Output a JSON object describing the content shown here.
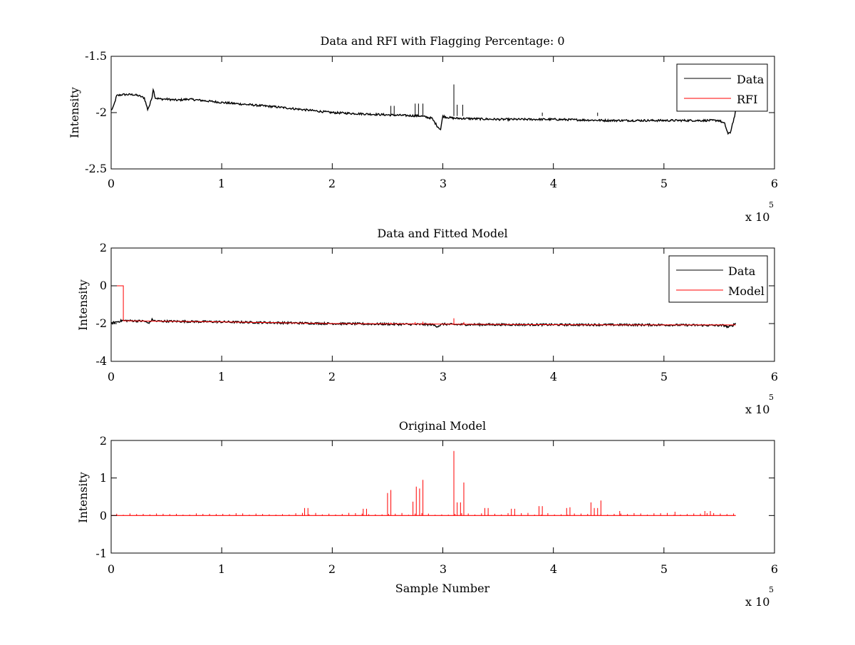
{
  "chart_data": [
    {
      "type": "line",
      "title": "Data and RFI with Flagging Percentage: 0",
      "xlabel": "",
      "ylabel": "Intensity",
      "xlim": [
        0,
        600000
      ],
      "ylim": [
        -2.5,
        -1.5
      ],
      "x_ticks": [
        "0",
        "1",
        "2",
        "3",
        "4",
        "5",
        "6"
      ],
      "y_ticks": [
        "-2.5",
        "-2",
        "-1.5"
      ],
      "x_multiplier": "x 10",
      "x_exponent": "5",
      "legend": {
        "location": "top-right",
        "entries": [
          "Data",
          "RFI"
        ]
      },
      "series": [
        {
          "name": "Data",
          "color": "#000000",
          "x": [
            0,
            2000,
            5000,
            10000,
            15000,
            20000,
            25000,
            30000,
            33000,
            35000,
            37000,
            38000,
            40000,
            45000,
            50000,
            60000,
            70000,
            80000,
            100000,
            150000,
            200000,
            250000,
            280000,
            290000,
            295000,
            298000,
            300000,
            303000,
            310000,
            350000,
            400000,
            450000,
            500000,
            550000,
            555000,
            558000,
            560000,
            562000,
            564000,
            565000
          ],
          "values": [
            -1.98,
            -1.95,
            -1.85,
            -1.84,
            -1.84,
            -1.84,
            -1.85,
            -1.87,
            -1.97,
            -1.93,
            -1.86,
            -1.79,
            -1.87,
            -1.88,
            -1.88,
            -1.89,
            -1.88,
            -1.89,
            -1.91,
            -1.95,
            -2.0,
            -2.02,
            -2.03,
            -2.05,
            -2.12,
            -2.15,
            -2.03,
            -2.04,
            -2.05,
            -2.06,
            -2.06,
            -2.07,
            -2.07,
            -2.07,
            -2.1,
            -2.19,
            -2.18,
            -2.1,
            -2.03,
            -1.98
          ]
        },
        {
          "name": "RFI",
          "color": "#ff0000",
          "x": [],
          "values": []
        }
      ]
    },
    {
      "type": "line",
      "title": "Data and Fitted Model",
      "xlabel": "",
      "ylabel": "Intensity",
      "xlim": [
        0,
        600000
      ],
      "ylim": [
        -4,
        2
      ],
      "x_ticks": [
        "0",
        "1",
        "2",
        "3",
        "4",
        "5",
        "6"
      ],
      "y_ticks": [
        "-4",
        "-2",
        "0",
        "2"
      ],
      "x_multiplier": "x 10",
      "x_exponent": "5",
      "legend": {
        "location": "top-right",
        "entries": [
          "Data",
          "Model"
        ]
      },
      "series": [
        {
          "name": "Data",
          "color": "#000000",
          "x": [
            0,
            10000,
            30000,
            33000,
            35000,
            37000,
            40000,
            100000,
            200000,
            290000,
            295000,
            300000,
            310000,
            400000,
            500000,
            555000,
            558000,
            562000,
            565000
          ],
          "values": [
            -1.98,
            -1.84,
            -1.87,
            -1.97,
            -1.93,
            -1.79,
            -1.87,
            -1.91,
            -2.0,
            -2.05,
            -2.15,
            -2.03,
            -2.05,
            -2.06,
            -2.07,
            -2.1,
            -2.19,
            -2.1,
            -1.98
          ]
        },
        {
          "name": "Model",
          "color": "#ff0000",
          "x": [
            0,
            11000,
            11000,
            40000,
            100000,
            200000,
            300000,
            400000,
            500000,
            565000
          ],
          "values": [
            0.0,
            0.0,
            -1.85,
            -1.87,
            -1.91,
            -2.0,
            -2.03,
            -2.06,
            -2.07,
            -2.07
          ]
        }
      ]
    },
    {
      "type": "line",
      "title": "Original Model",
      "xlabel": "Sample Number",
      "ylabel": "Intensity",
      "xlim": [
        0,
        600000
      ],
      "ylim": [
        -1,
        2
      ],
      "x_ticks": [
        "0",
        "1",
        "2",
        "3",
        "4",
        "5",
        "6"
      ],
      "y_ticks": [
        "-1",
        "0",
        "1",
        "2"
      ],
      "x_multiplier": "x 10",
      "x_exponent": "5",
      "series": [
        {
          "name": "",
          "color": "#ff0000",
          "spikes": [
            [
              175000,
              0.2
            ],
            [
              178000,
              0.2
            ],
            [
              228000,
              0.18
            ],
            [
              231000,
              0.18
            ],
            [
              250000,
              0.6
            ],
            [
              253000,
              0.68
            ],
            [
              273000,
              0.37
            ],
            [
              276000,
              0.77
            ],
            [
              279000,
              0.72
            ],
            [
              282000,
              0.95
            ],
            [
              310000,
              1.72
            ],
            [
              313000,
              0.35
            ],
            [
              316000,
              0.35
            ],
            [
              319000,
              0.88
            ],
            [
              338000,
              0.2
            ],
            [
              341000,
              0.2
            ],
            [
              362000,
              0.18
            ],
            [
              365000,
              0.18
            ],
            [
              387000,
              0.25
            ],
            [
              390000,
              0.25
            ],
            [
              412000,
              0.2
            ],
            [
              415000,
              0.22
            ],
            [
              434000,
              0.35
            ],
            [
              437000,
              0.2
            ],
            [
              440000,
              0.2
            ],
            [
              443000,
              0.4
            ],
            [
              460000,
              0.12
            ],
            [
              537000,
              0.12
            ],
            [
              542000,
              0.12
            ],
            [
              510000,
              0.1
            ]
          ],
          "x_end": 565000
        }
      ]
    }
  ]
}
